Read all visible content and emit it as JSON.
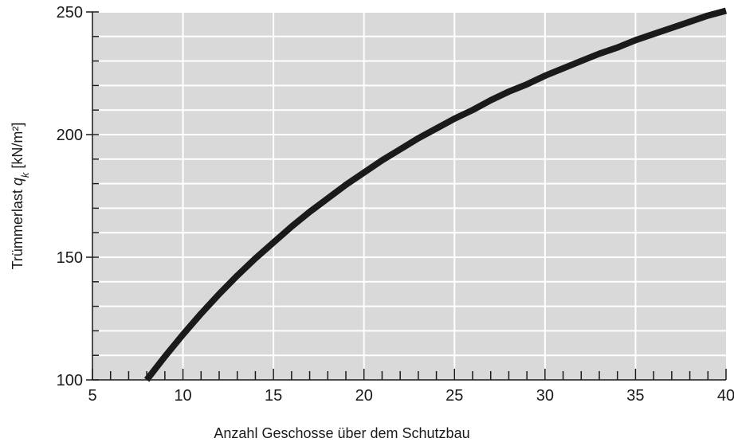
{
  "chart_data": {
    "type": "line",
    "title": "",
    "xlabel": "Anzahl Geschosse über dem Schutzbau",
    "ylabel_main": "Trümmerlast ",
    "ylabel_symbol": "q",
    "ylabel_subscript": "k",
    "ylabel_unit": " [kN/m²]",
    "xlim": [
      5,
      40
    ],
    "ylim": [
      100,
      250
    ],
    "x_major_ticks": [
      5,
      10,
      15,
      20,
      25,
      30,
      35,
      40
    ],
    "x_minor_step": 1,
    "y_major_ticks": [
      100,
      150,
      200,
      250
    ],
    "y_minor_step": 10,
    "grid": true,
    "background_color": "#d9d9d9",
    "grid_color": "#ffffff",
    "line_color": "#1a1a1a",
    "series": [
      {
        "x": [
          8,
          9,
          10,
          11,
          12,
          13,
          14,
          15,
          16,
          17,
          18,
          19,
          20,
          21,
          22,
          23,
          24,
          25,
          26,
          27,
          28,
          29,
          30,
          31,
          32,
          33,
          34,
          35,
          36,
          37,
          38,
          39,
          40
        ],
        "values": [
          100,
          109.5,
          118.5,
          127,
          135,
          142.5,
          149.5,
          156,
          162.5,
          168.5,
          174,
          179.5,
          184.5,
          189.5,
          194,
          198.5,
          202.5,
          206.5,
          210,
          214,
          217.5,
          220.5,
          224,
          227,
          230,
          233,
          235.5,
          238.5,
          241,
          243.5,
          246,
          248.5,
          250.5
        ]
      }
    ]
  }
}
